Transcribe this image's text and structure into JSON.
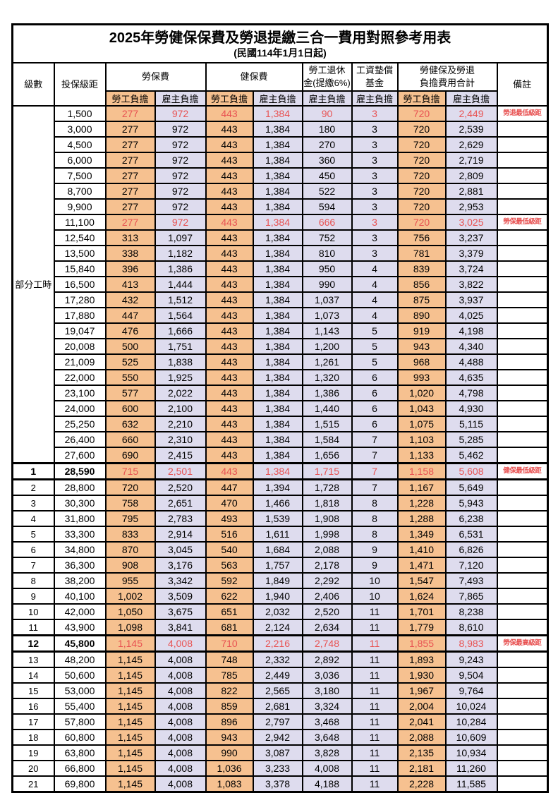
{
  "title": "2025年勞健保保費及勞退提繳三合一費用對照參考用表",
  "subtitle": "(民國114年1月1日起)",
  "header": {
    "level": "級數",
    "bracket": "投保級距",
    "labor_insurance": "勞保費",
    "health_insurance": "健保費",
    "pension": [
      "勞工退休",
      "金(提繳6%)"
    ],
    "wage_fund": [
      "工資墊償",
      "基金"
    ],
    "total": [
      "勞健保及勞退",
      "負擔費用合計"
    ],
    "remark": "備註",
    "employee_burden": "勞工負擔",
    "employer_burden": "雇主負擔"
  },
  "part_time": {
    "label": "部分工時",
    "span": 23
  },
  "colors": {
    "employee_column_bg": "#F6C190",
    "employer_column_bg": "#DEDCEE",
    "highlight_text": "#E85252",
    "border": "#000000"
  },
  "value_columns": [
    "labor-ins-employee",
    "labor-ins-employer",
    "health-ins-employee",
    "health-ins-employer",
    "pension-employer",
    "wage-fund-employer",
    "total-employee",
    "total-employer"
  ],
  "rows": [
    {
      "level": "",
      "bracket": "1,500",
      "values": [
        "277",
        "972",
        "443",
        "1,384",
        "90",
        "3",
        "720",
        "2,449"
      ],
      "remark": "勞退最低級距",
      "highlight": true
    },
    {
      "level": "",
      "bracket": "3,000",
      "values": [
        "277",
        "972",
        "443",
        "1,384",
        "180",
        "3",
        "720",
        "2,539"
      ],
      "remark": ""
    },
    {
      "level": "",
      "bracket": "4,500",
      "values": [
        "277",
        "972",
        "443",
        "1,384",
        "270",
        "3",
        "720",
        "2,629"
      ],
      "remark": ""
    },
    {
      "level": "",
      "bracket": "6,000",
      "values": [
        "277",
        "972",
        "443",
        "1,384",
        "360",
        "3",
        "720",
        "2,719"
      ],
      "remark": ""
    },
    {
      "level": "",
      "bracket": "7,500",
      "values": [
        "277",
        "972",
        "443",
        "1,384",
        "450",
        "3",
        "720",
        "2,809"
      ],
      "remark": ""
    },
    {
      "level": "",
      "bracket": "8,700",
      "values": [
        "277",
        "972",
        "443",
        "1,384",
        "522",
        "3",
        "720",
        "2,881"
      ],
      "remark": ""
    },
    {
      "level": "",
      "bracket": "9,900",
      "values": [
        "277",
        "972",
        "443",
        "1,384",
        "594",
        "3",
        "720",
        "2,953"
      ],
      "remark": ""
    },
    {
      "level": "",
      "bracket": "11,100",
      "values": [
        "277",
        "972",
        "443",
        "1,384",
        "666",
        "3",
        "720",
        "3,025"
      ],
      "remark": "勞保最低級距",
      "highlight": true
    },
    {
      "level": "",
      "bracket": "12,540",
      "values": [
        "313",
        "1,097",
        "443",
        "1,384",
        "752",
        "3",
        "756",
        "3,237"
      ],
      "remark": ""
    },
    {
      "level": "",
      "bracket": "13,500",
      "values": [
        "338",
        "1,182",
        "443",
        "1,384",
        "810",
        "3",
        "781",
        "3,379"
      ],
      "remark": ""
    },
    {
      "level": "",
      "bracket": "15,840",
      "values": [
        "396",
        "1,386",
        "443",
        "1,384",
        "950",
        "4",
        "839",
        "3,724"
      ],
      "remark": ""
    },
    {
      "level": "",
      "bracket": "16,500",
      "values": [
        "413",
        "1,444",
        "443",
        "1,384",
        "990",
        "4",
        "856",
        "3,822"
      ],
      "remark": ""
    },
    {
      "level": "",
      "bracket": "17,280",
      "values": [
        "432",
        "1,512",
        "443",
        "1,384",
        "1,037",
        "4",
        "875",
        "3,937"
      ],
      "remark": ""
    },
    {
      "level": "",
      "bracket": "17,880",
      "values": [
        "447",
        "1,564",
        "443",
        "1,384",
        "1,073",
        "4",
        "890",
        "4,025"
      ],
      "remark": ""
    },
    {
      "level": "",
      "bracket": "19,047",
      "values": [
        "476",
        "1,666",
        "443",
        "1,384",
        "1,143",
        "5",
        "919",
        "4,198"
      ],
      "remark": ""
    },
    {
      "level": "",
      "bracket": "20,008",
      "values": [
        "500",
        "1,751",
        "443",
        "1,384",
        "1,200",
        "5",
        "943",
        "4,340"
      ],
      "remark": ""
    },
    {
      "level": "",
      "bracket": "21,009",
      "values": [
        "525",
        "1,838",
        "443",
        "1,384",
        "1,261",
        "5",
        "968",
        "4,488"
      ],
      "remark": ""
    },
    {
      "level": "",
      "bracket": "22,000",
      "values": [
        "550",
        "1,925",
        "443",
        "1,384",
        "1,320",
        "6",
        "993",
        "4,635"
      ],
      "remark": ""
    },
    {
      "level": "",
      "bracket": "23,100",
      "values": [
        "577",
        "2,022",
        "443",
        "1,384",
        "1,386",
        "6",
        "1,020",
        "4,798"
      ],
      "remark": ""
    },
    {
      "level": "",
      "bracket": "24,000",
      "values": [
        "600",
        "2,100",
        "443",
        "1,384",
        "1,440",
        "6",
        "1,043",
        "4,930"
      ],
      "remark": ""
    },
    {
      "level": "",
      "bracket": "25,250",
      "values": [
        "632",
        "2,210",
        "443",
        "1,384",
        "1,515",
        "6",
        "1,075",
        "5,115"
      ],
      "remark": ""
    },
    {
      "level": "",
      "bracket": "26,400",
      "values": [
        "660",
        "2,310",
        "443",
        "1,384",
        "1,584",
        "7",
        "1,103",
        "5,285"
      ],
      "remark": ""
    },
    {
      "level": "",
      "bracket": "27,600",
      "values": [
        "690",
        "2,415",
        "443",
        "1,384",
        "1,656",
        "7",
        "1,133",
        "5,462"
      ],
      "remark": ""
    },
    {
      "level": "1",
      "bracket": "28,590",
      "values": [
        "715",
        "2,501",
        "443",
        "1,384",
        "1,715",
        "7",
        "1,158",
        "5,608"
      ],
      "remark": "健保最低級距",
      "highlight": true,
      "emphasis": true
    },
    {
      "level": "2",
      "bracket": "28,800",
      "values": [
        "720",
        "2,520",
        "447",
        "1,394",
        "1,728",
        "7",
        "1,167",
        "5,649"
      ],
      "remark": ""
    },
    {
      "level": "3",
      "bracket": "30,300",
      "values": [
        "758",
        "2,651",
        "470",
        "1,466",
        "1,818",
        "8",
        "1,228",
        "5,943"
      ],
      "remark": ""
    },
    {
      "level": "4",
      "bracket": "31,800",
      "values": [
        "795",
        "2,783",
        "493",
        "1,539",
        "1,908",
        "8",
        "1,288",
        "6,238"
      ],
      "remark": ""
    },
    {
      "level": "5",
      "bracket": "33,300",
      "values": [
        "833",
        "2,914",
        "516",
        "1,611",
        "1,998",
        "8",
        "1,349",
        "6,531"
      ],
      "remark": ""
    },
    {
      "level": "6",
      "bracket": "34,800",
      "values": [
        "870",
        "3,045",
        "540",
        "1,684",
        "2,088",
        "9",
        "1,410",
        "6,826"
      ],
      "remark": ""
    },
    {
      "level": "7",
      "bracket": "36,300",
      "values": [
        "908",
        "3,176",
        "563",
        "1,757",
        "2,178",
        "9",
        "1,471",
        "7,120"
      ],
      "remark": ""
    },
    {
      "level": "8",
      "bracket": "38,200",
      "values": [
        "955",
        "3,342",
        "592",
        "1,849",
        "2,292",
        "10",
        "1,547",
        "7,493"
      ],
      "remark": ""
    },
    {
      "level": "9",
      "bracket": "40,100",
      "values": [
        "1,002",
        "3,509",
        "622",
        "1,940",
        "2,406",
        "10",
        "1,624",
        "7,865"
      ],
      "remark": ""
    },
    {
      "level": "10",
      "bracket": "42,000",
      "values": [
        "1,050",
        "3,675",
        "651",
        "2,032",
        "2,520",
        "11",
        "1,701",
        "8,238"
      ],
      "remark": ""
    },
    {
      "level": "11",
      "bracket": "43,900",
      "values": [
        "1,098",
        "3,841",
        "681",
        "2,124",
        "2,634",
        "11",
        "1,779",
        "8,610"
      ],
      "remark": ""
    },
    {
      "level": "12",
      "bracket": "45,800",
      "values": [
        "1,145",
        "4,008",
        "710",
        "2,216",
        "2,748",
        "11",
        "1,855",
        "8,983"
      ],
      "remark": "勞保最高級距",
      "highlight": true,
      "emphasis": true
    },
    {
      "level": "13",
      "bracket": "48,200",
      "values": [
        "1,145",
        "4,008",
        "748",
        "2,332",
        "2,892",
        "11",
        "1,893",
        "9,243"
      ],
      "remark": ""
    },
    {
      "level": "14",
      "bracket": "50,600",
      "values": [
        "1,145",
        "4,008",
        "785",
        "2,449",
        "3,036",
        "11",
        "1,930",
        "9,504"
      ],
      "remark": ""
    },
    {
      "level": "15",
      "bracket": "53,000",
      "values": [
        "1,145",
        "4,008",
        "822",
        "2,565",
        "3,180",
        "11",
        "1,967",
        "9,764"
      ],
      "remark": ""
    },
    {
      "level": "16",
      "bracket": "55,400",
      "values": [
        "1,145",
        "4,008",
        "859",
        "2,681",
        "3,324",
        "11",
        "2,004",
        "10,024"
      ],
      "remark": ""
    },
    {
      "level": "17",
      "bracket": "57,800",
      "values": [
        "1,145",
        "4,008",
        "896",
        "2,797",
        "3,468",
        "11",
        "2,041",
        "10,284"
      ],
      "remark": ""
    },
    {
      "level": "18",
      "bracket": "60,800",
      "values": [
        "1,145",
        "4,008",
        "943",
        "2,942",
        "3,648",
        "11",
        "2,088",
        "10,609"
      ],
      "remark": ""
    },
    {
      "level": "19",
      "bracket": "63,800",
      "values": [
        "1,145",
        "4,008",
        "990",
        "3,087",
        "3,828",
        "11",
        "2,135",
        "10,934"
      ],
      "remark": ""
    },
    {
      "level": "20",
      "bracket": "66,800",
      "values": [
        "1,145",
        "4,008",
        "1,036",
        "3,233",
        "4,008",
        "11",
        "2,181",
        "11,260"
      ],
      "remark": ""
    },
    {
      "level": "21",
      "bracket": "69,800",
      "values": [
        "1,145",
        "4,008",
        "1,083",
        "3,378",
        "4,188",
        "11",
        "2,228",
        "11,585"
      ],
      "remark": ""
    }
  ]
}
